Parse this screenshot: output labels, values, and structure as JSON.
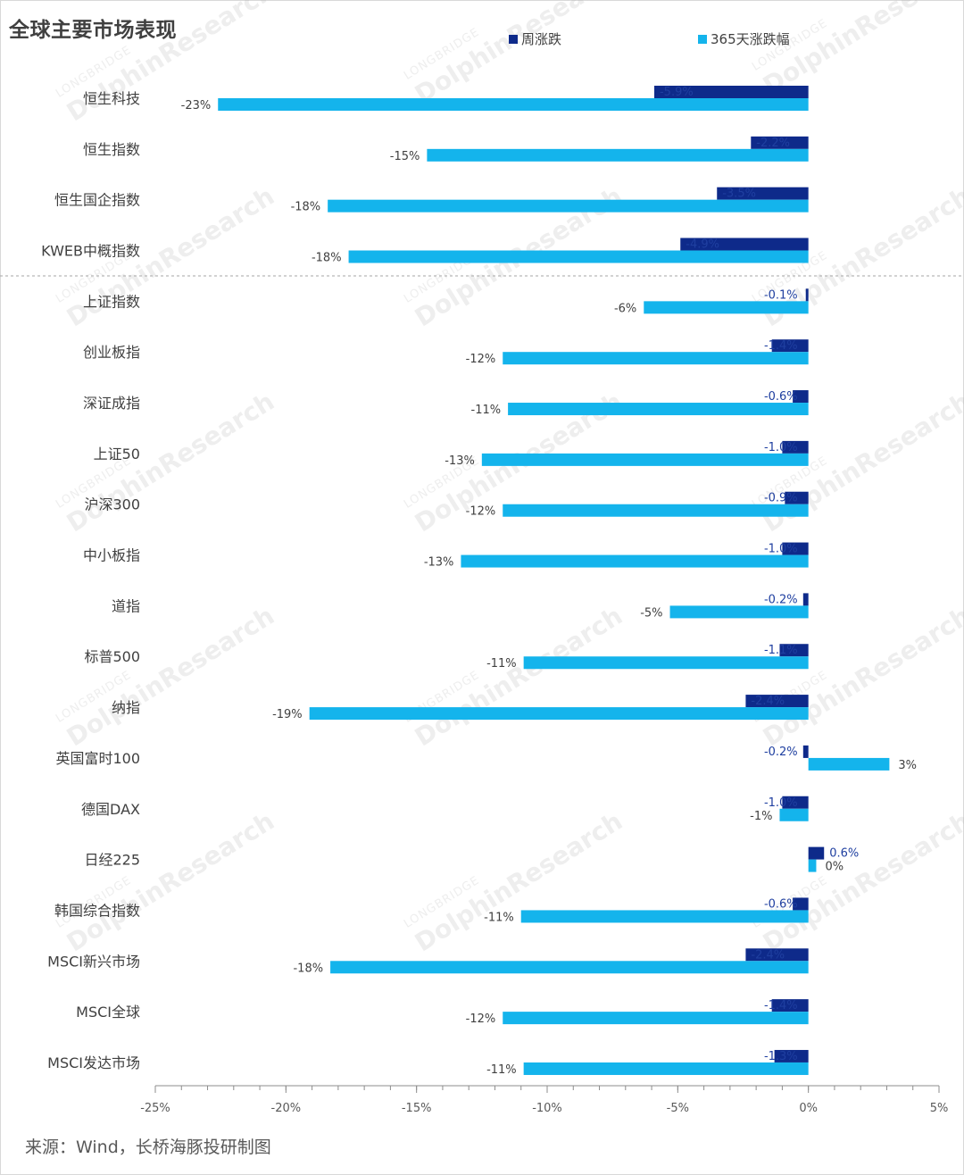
{
  "title": "全球主要市场表现",
  "legend": [
    {
      "name": "周涨跌",
      "color": "#0e2a8a"
    },
    {
      "name": "365天涨跌幅",
      "color": "#14b4ec"
    }
  ],
  "source": "来源：Wind，长桥海豚投研制图",
  "watermark": {
    "small": "LONGBRIDGE",
    "large": "DolphinResearch"
  },
  "chart_data": {
    "type": "bar",
    "orientation": "horizontal",
    "categories": [
      "恒生科技",
      "恒生指数",
      "恒生国企指数",
      "KWEB中概指数",
      "上证指数",
      "创业板指",
      "深证成指",
      "上证50",
      "沪深300",
      "中小板指",
      "道指",
      "标普500",
      "纳指",
      "英国富时100",
      "德国DAX",
      "日经225",
      "韩国综合指数",
      "MSCI新兴市场",
      "MSCI全球",
      "MSCI发达市场"
    ],
    "series": [
      {
        "name": "周涨跌",
        "values": [
          -5.9,
          -2.2,
          -3.5,
          -4.9,
          -0.1,
          -1.4,
          -0.6,
          -1.0,
          -0.9,
          -1.0,
          -0.2,
          -1.1,
          -2.4,
          -0.2,
          -1.0,
          0.6,
          -0.6,
          -2.4,
          -1.4,
          -1.3
        ],
        "labels": [
          "-5.9%",
          "-2.2%",
          "-3.5%",
          "-4.9%",
          "-0.1%",
          "-1.4%",
          "-0.6%",
          "-1.0%",
          "-0.9%",
          "-1.0%",
          "-0.2%",
          "-1.1%",
          "-2.4%",
          "-0.2%",
          "-1.0%",
          "0.6%",
          "-0.6%",
          "-2.4%",
          "-1.4%",
          "-1.3%"
        ]
      },
      {
        "name": "365天涨跌幅",
        "values": [
          -22.6,
          -14.6,
          -18.4,
          -17.6,
          -6.3,
          -11.7,
          -11.5,
          -12.5,
          -11.7,
          -13.3,
          -5.3,
          -10.9,
          -19.1,
          3.1,
          -1.1,
          0.3,
          -11.0,
          -18.3,
          -11.7,
          -10.9
        ],
        "labels": [
          "-23%",
          "-15%",
          "-18%",
          "-18%",
          "-6%",
          "-12%",
          "-11%",
          "-13%",
          "-12%",
          "-13%",
          "-5%",
          "-11%",
          "-19%",
          "3%",
          "-1%",
          "0%",
          "-11%",
          "-18%",
          "-12%",
          "-11%"
        ]
      }
    ],
    "xlim": [
      -25,
      5
    ],
    "xticks": [
      -25,
      -20,
      -15,
      -10,
      -5,
      0,
      5
    ],
    "xtick_labels": [
      "-25%",
      "-20%",
      "-15%",
      "-10%",
      "-5%",
      "0%",
      "5%"
    ],
    "separator_after_category": "KWEB中概指数",
    "grid": false
  }
}
